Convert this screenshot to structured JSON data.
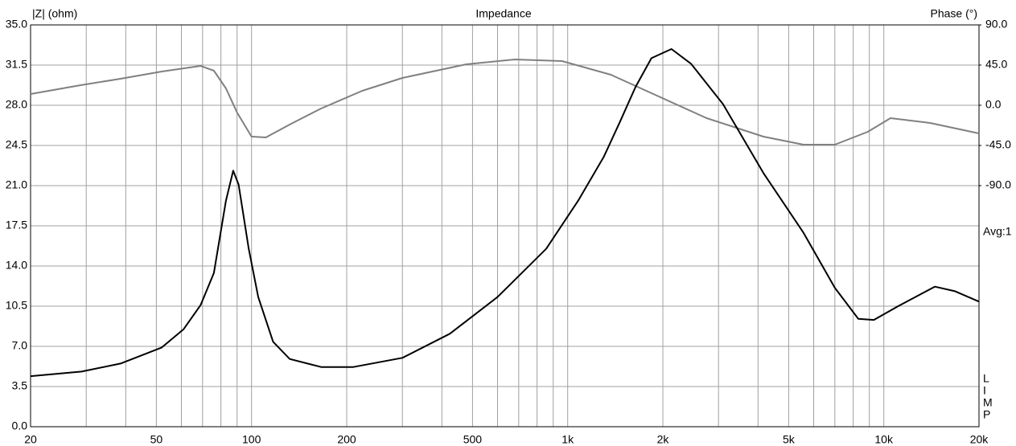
{
  "chart_data": {
    "type": "line",
    "title": "Impedance",
    "y_label": "|Z| (ohm)",
    "y2_label": "Phase (°)",
    "annotation": "Avg:1",
    "brand_letters": [
      "L",
      "I",
      "M",
      "P"
    ],
    "xscale": "log",
    "grid": true,
    "xlim": [
      20,
      20000
    ],
    "xticks": [
      20,
      50,
      100,
      200,
      500,
      {
        "value": 1000,
        "label": "1k"
      },
      {
        "value": 2000,
        "label": "2k"
      },
      {
        "value": 5000,
        "label": "5k"
      },
      {
        "value": 10000,
        "label": "10k"
      },
      {
        "value": 20000,
        "label": "20k"
      }
    ],
    "xgrid_minor": [
      30,
      40,
      60,
      70,
      80,
      90,
      300,
      400,
      600,
      700,
      800,
      900,
      3000,
      4000,
      6000,
      7000,
      8000,
      9000
    ],
    "ylim": [
      0,
      35
    ],
    "yticks": [
      {
        "value": 0,
        "label": "0.0"
      },
      3.5,
      {
        "value": 7,
        "label": "7.0"
      },
      10.5,
      {
        "value": 14,
        "label": "14.0"
      },
      17.5,
      {
        "value": 21,
        "label": "21.0"
      },
      24.5,
      {
        "value": 28,
        "label": "28.0"
      },
      31.5,
      {
        "value": 35,
        "label": "35.0"
      }
    ],
    "y2lim": [
      -360,
      90
    ],
    "y2ticks": [
      {
        "value": -90,
        "label": "-90.0"
      },
      {
        "value": -45,
        "label": "-45.0"
      },
      {
        "value": 0,
        "label": "0.0"
      },
      {
        "value": 45,
        "label": "45.0"
      },
      {
        "value": 90,
        "label": "90.0"
      }
    ],
    "series": [
      {
        "name": "Impedance",
        "color": "#000000",
        "x": [
          20,
          29,
          38.5,
          52,
          61,
          69,
          76,
          83,
          87.5,
          91,
          98,
          105,
          117,
          132,
          166,
          210,
          300,
          424,
          600,
          855,
          1080,
          1300,
          1460,
          1640,
          1840,
          2130,
          2460,
          3100,
          4160,
          5570,
          7000,
          8300,
          9300,
          11100,
          14500,
          16800,
          20000
        ],
        "values": [
          4.4,
          4.8,
          5.5,
          6.9,
          8.5,
          10.6,
          13.4,
          19.7,
          22.3,
          21.1,
          15.5,
          11.3,
          7.4,
          5.9,
          5.2,
          5.2,
          6.0,
          8.1,
          11.3,
          15.5,
          19.7,
          23.5,
          26.5,
          29.6,
          32.1,
          32.9,
          31.6,
          28.1,
          22.1,
          16.9,
          12.1,
          9.4,
          9.3,
          10.5,
          12.2,
          11.8,
          10.9
        ]
      },
      {
        "name": "Phase",
        "color": "#808080",
        "axis": "y2",
        "x": [
          20,
          28.8,
          38.5,
          52,
          69,
          76,
          83,
          90,
          100,
          111,
          132,
          166,
          224,
          300,
          478,
          680,
          960,
          1370,
          1940,
          2750,
          4160,
          5570,
          7000,
          8900,
          10500,
          14000,
          20000
        ],
        "values": [
          12.6,
          22.5,
          29.7,
          37.8,
          44.1,
          38.7,
          18.9,
          -8.1,
          -35.1,
          -36,
          -21.6,
          -3.6,
          16.2,
          30.6,
          45.9,
          51.3,
          49.5,
          34.2,
          9.9,
          -14.4,
          -35.1,
          -44.1,
          -44.1,
          -29.7,
          -14.4,
          -19.8,
          -31.5
        ]
      }
    ]
  }
}
